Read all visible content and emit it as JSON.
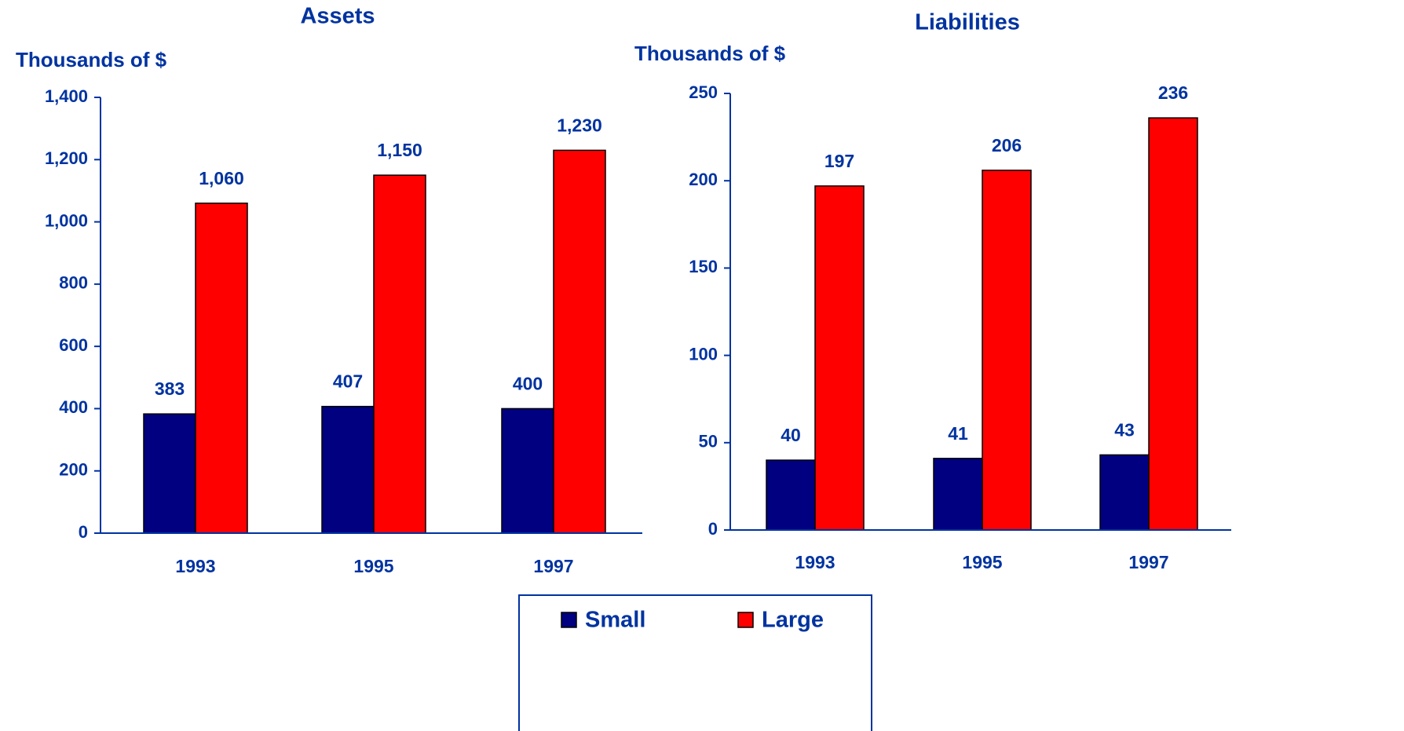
{
  "chart_data": [
    {
      "type": "bar",
      "title": "Assets",
      "y_label": "Thousands of $",
      "categories": [
        "1993",
        "1995",
        "1997"
      ],
      "series": [
        {
          "name": "Small",
          "color": "#000080",
          "values": [
            383,
            407,
            400
          ]
        },
        {
          "name": "Large",
          "color": "#ff0000",
          "values": [
            1060,
            1150,
            1230
          ],
          "value_labels": [
            "1,060",
            "1,150",
            "1,230"
          ]
        }
      ],
      "ylim": [
        0,
        1400
      ],
      "yticks": [
        0,
        200,
        400,
        600,
        800,
        {
          "value": 1000,
          "label": "1,000"
        },
        {
          "value": 1200,
          "label": "1,200"
        },
        {
          "value": 1400,
          "label": "1,400"
        }
      ]
    },
    {
      "type": "bar",
      "title": "Liabilities",
      "y_label": "Thousands of $",
      "categories": [
        "1993",
        "1995",
        "1997"
      ],
      "series": [
        {
          "name": "Small",
          "color": "#000080",
          "values": [
            40,
            41,
            43
          ]
        },
        {
          "name": "Large",
          "color": "#ff0000",
          "values": [
            197,
            206,
            236
          ]
        }
      ],
      "ylim": [
        0,
        250
      ],
      "yticks": [
        0,
        50,
        100,
        150,
        200,
        250
      ]
    }
  ]
}
